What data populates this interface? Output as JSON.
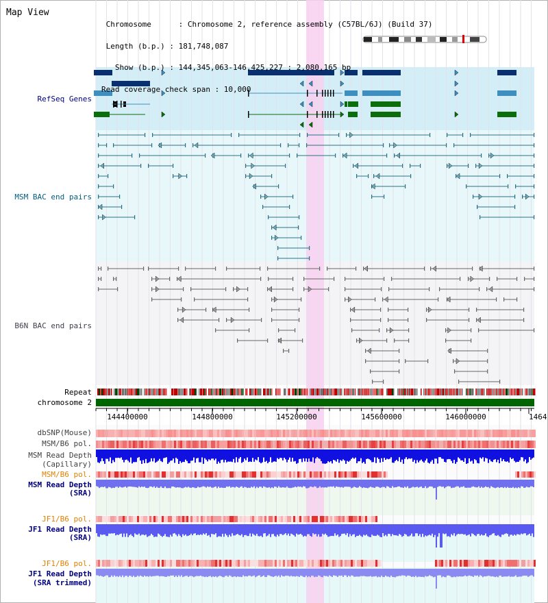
{
  "view_title": "Map View",
  "header": {
    "lines": [
      " Chromosome      : Chromosome 2, reference assembly (C57BL/6J) (Build 37)",
      " Length (b.p.) : 181,748,087",
      "   Show (b.p.) : 144,345,063-146,425,227 : 2,080,165 bp",
      "Read coverage check span : 10,000"
    ]
  },
  "tracks": {
    "refseq": "RefSeq Genes",
    "msm_bac": "MSM BAC end pairs",
    "b6n_bac": "B6N BAC end pairs",
    "repeat": "Repeat",
    "chromosome": "chromosome 2",
    "dbsnp": "dbSNP(Mouse)",
    "msm_b6_pol_1": "MSM/B6 pol.",
    "msm_depth_cap_1": "MSM Read Depth",
    "msm_depth_cap_2": "(Capillary)",
    "msm_b6_pol_2": "MSM/B6 pol.",
    "msm_depth_sra_1": "MSM Read Depth",
    "msm_depth_sra_2": "(SRA)",
    "jf1_b6_pol_1": "JF1/B6 pol.",
    "jf1_depth_sra_1": "JF1 Read Depth",
    "jf1_depth_sra_2": "(SRA)",
    "jf1_b6_pol_2": "JF1/B6 pol.",
    "jf1_depth_trim_1": "JF1 Read Depth",
    "jf1_depth_trim_2": "(SRA trimmed)"
  },
  "axis": {
    "ticks": [
      "144400000",
      "144800000",
      "145200000",
      "145600000",
      "146000000",
      "1464"
    ]
  },
  "colors": {
    "gene_dark": "#0a2f6e",
    "gene_light": "#3e8fc0",
    "gene_green": "#0b6e0b",
    "msm_pair": "#2a6f86",
    "b6n_pair": "#666666",
    "depth_blue": "#1010e0",
    "depth_light": "#7070ee",
    "highlight": "#f8d0f0",
    "track_label_blue": "#000080",
    "track_label_orange": "#e08000",
    "track_label_teal": "#006080"
  }
}
